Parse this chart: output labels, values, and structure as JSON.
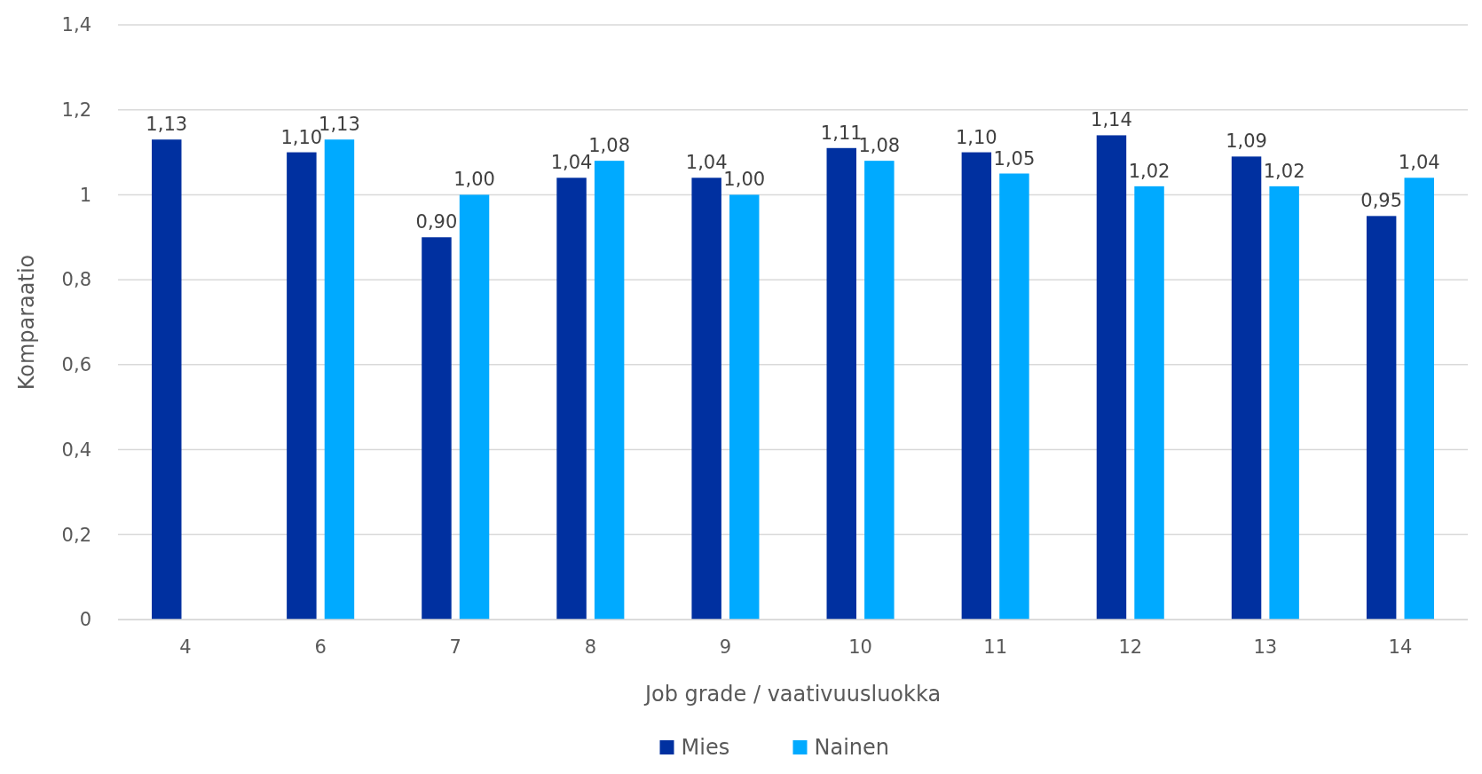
{
  "chart_data": {
    "type": "bar",
    "xlabel": "Job grade / vaativuusluokka",
    "ylabel": "Komparaatio",
    "categories": [
      "4",
      "6",
      "7",
      "8",
      "9",
      "10",
      "11",
      "12",
      "13",
      "14"
    ],
    "series": [
      {
        "name": "Mies",
        "color": "#0030a0",
        "values": [
          1.13,
          1.1,
          0.9,
          1.04,
          1.04,
          1.11,
          1.1,
          1.14,
          1.09,
          0.95
        ],
        "value_labels": [
          "1,13",
          "1,10",
          "0,90",
          "1,04",
          "1,04",
          "1,11",
          "1,10",
          "1,14",
          "1,09",
          "0,95"
        ]
      },
      {
        "name": "Nainen",
        "color": "#00aaff",
        "values": [
          null,
          1.13,
          1.0,
          1.08,
          1.0,
          1.08,
          1.05,
          1.02,
          1.02,
          1.04
        ],
        "value_labels": [
          null,
          "1,13",
          "1,00",
          "1,08",
          "1,00",
          "1,08",
          "1,05",
          "1,02",
          "1,02",
          "1,04"
        ]
      }
    ],
    "ylim": [
      0,
      1.4
    ],
    "yticks": [
      0,
      {
        "value": 0.2,
        "label": "0,2"
      },
      {
        "value": 0.4,
        "label": "0,4"
      },
      {
        "value": 0.6,
        "label": "0,6"
      },
      {
        "value": 0.8,
        "label": "0,8"
      },
      1,
      {
        "value": 1.2,
        "label": "1,2"
      },
      {
        "value": 1.4,
        "label": "1,4"
      }
    ],
    "grid": "y",
    "legend": "bottom"
  }
}
